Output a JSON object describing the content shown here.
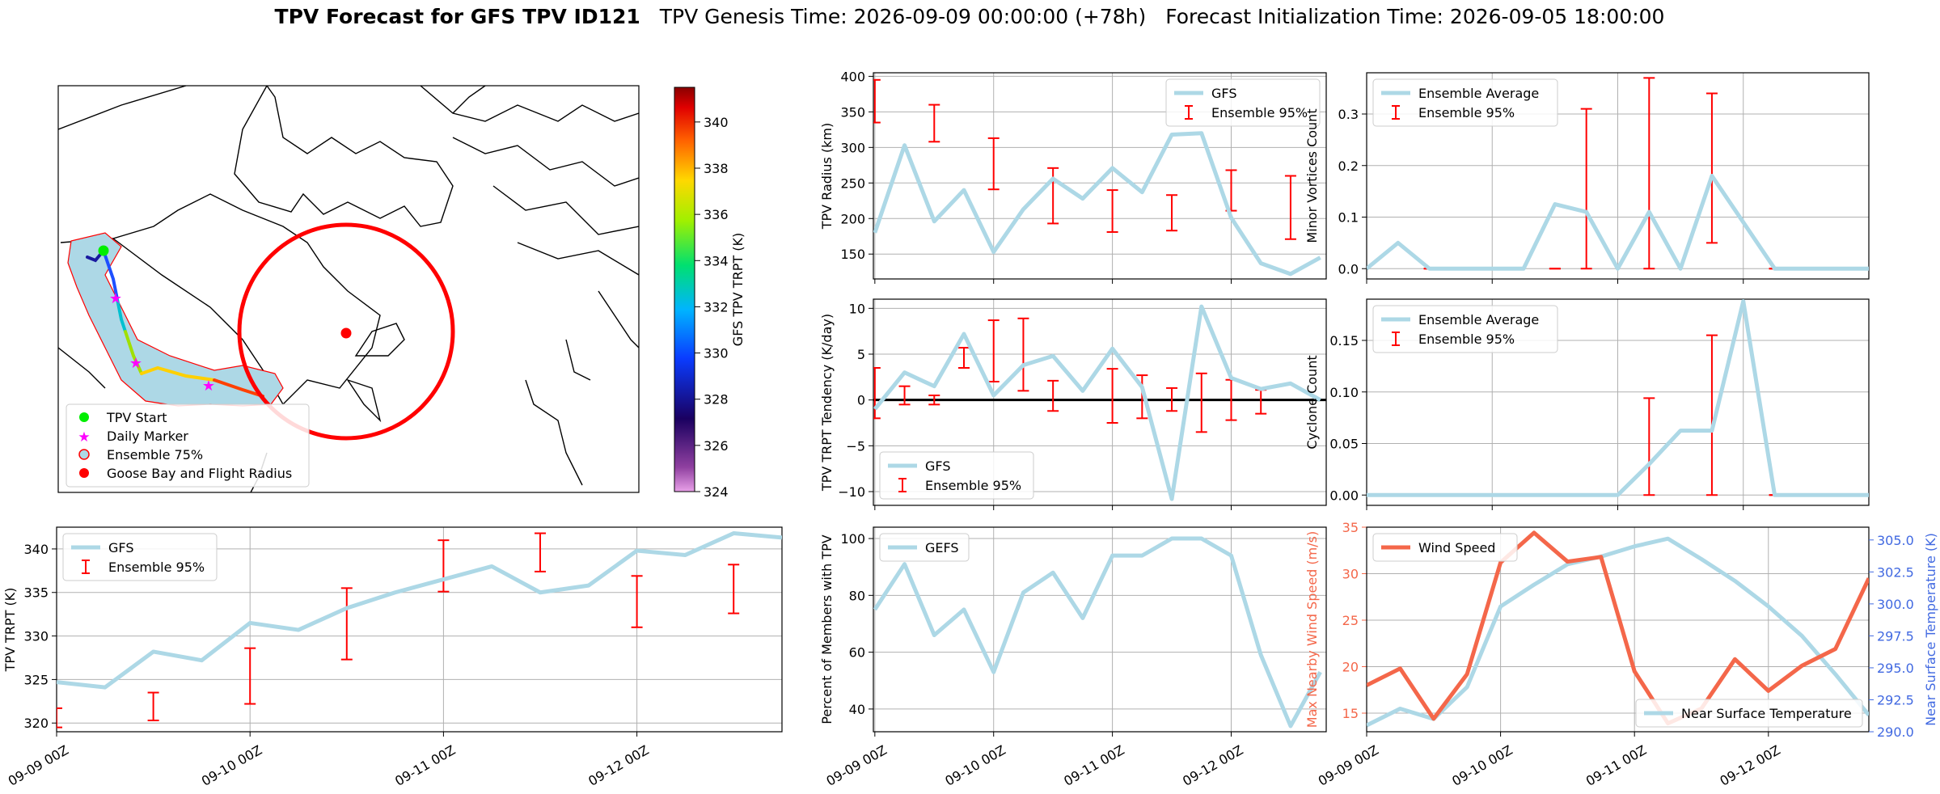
{
  "figure": {
    "title_bold": "TPV Forecast for GFS TPV ID121",
    "title_genesis": "TPV Genesis Time: 2026-09-09 00:00:00 (+78h)",
    "title_init": "Forecast Initialization Time: 2026-09-05 18:00:00"
  },
  "colors": {
    "gfs": "#add8e6",
    "ensemble": "#ff0000",
    "wind": "#f4674a",
    "temp_axis": "#4169e1"
  },
  "chart_data": [
    {
      "id": "map",
      "type": "scatter",
      "colorbar_label": "GFS TPV TRPT (K)",
      "colorbar_range": [
        324,
        341.5
      ],
      "colorbar_ticks": [
        "324",
        "326",
        "328",
        "330",
        "332",
        "334",
        "336",
        "338",
        "340"
      ],
      "legend": [
        "TPV Start",
        "Daily Marker",
        "Ensemble 75%",
        "Goose Bay and Flight Radius"
      ]
    },
    {
      "id": "radius",
      "type": "line",
      "ylabel": "TPV Radius (km)",
      "ylim": [
        115,
        405
      ],
      "yticks": [
        "150",
        "200",
        "250",
        "300",
        "350",
        "400"
      ],
      "legend": [
        "GFS",
        "Ensemble 95%"
      ],
      "legend_pos": "top-right",
      "series_values": [
        180,
        303,
        196,
        240,
        153,
        213,
        256,
        228,
        271,
        237,
        318,
        320,
        201,
        137,
        122,
        145
      ],
      "err": [
        [
          0,
          335,
          395
        ],
        [
          2,
          308,
          360
        ],
        [
          4,
          241,
          313
        ],
        [
          6,
          193,
          271
        ],
        [
          8,
          181,
          240
        ],
        [
          10,
          183,
          233
        ],
        [
          12,
          211,
          268
        ],
        [
          14,
          171,
          260
        ]
      ]
    },
    {
      "id": "ms",
      "type": "line",
      "ylabel": "Minor Vortices Count",
      "ylim": [
        -0.02,
        0.38
      ],
      "yticks": [
        "0.0",
        "0.1",
        "0.2",
        "0.3"
      ],
      "legend": [
        "Ensemble Average",
        "Ensemble 95%"
      ],
      "legend_pos": "top-left",
      "series_values": [
        0,
        0.05,
        0,
        0,
        0,
        0,
        0.125,
        0.11,
        0,
        0.11,
        0,
        0.18,
        0.09,
        0,
        0,
        0,
        0
      ],
      "err": [
        [
          2,
          0,
          0
        ],
        [
          6,
          0,
          0
        ],
        [
          7,
          0,
          0.31
        ],
        [
          9,
          0,
          0.37
        ],
        [
          11,
          0.05,
          0.34
        ],
        [
          13,
          0,
          0
        ],
        [
          15,
          0,
          0
        ]
      ]
    },
    {
      "id": "tend",
      "type": "line",
      "ylabel": "TPV TRPT Tendency (K/day)",
      "ylim": [
        -11.5,
        11
      ],
      "yticks": [
        "−10",
        "−5",
        "0",
        "5",
        "10"
      ],
      "legend": [
        "GFS",
        "Ensemble 95%"
      ],
      "legend_pos": "bottom-left",
      "series_values": [
        -1,
        3,
        1.5,
        7.2,
        0.5,
        3.8,
        4.8,
        1,
        5.6,
        1.4,
        -10.8,
        10.2,
        2.4,
        1.2,
        1.8,
        0
      ],
      "err": [
        [
          0,
          -2,
          3.5
        ],
        [
          1,
          -0.5,
          1.5
        ],
        [
          2,
          -0.5,
          0.5
        ],
        [
          3,
          3.5,
          5.7
        ],
        [
          4,
          2,
          8.7
        ],
        [
          5,
          1,
          8.9
        ],
        [
          6,
          -1.2,
          2.1
        ],
        [
          8,
          -2.5,
          3.4
        ],
        [
          9,
          -2,
          2.7
        ],
        [
          10,
          -1.2,
          1.3
        ],
        [
          11,
          -3.5,
          2.9
        ],
        [
          12,
          -2.2,
          2.2
        ],
        [
          13,
          -1.5,
          1.1
        ]
      ]
    },
    {
      "id": "cyc",
      "type": "line",
      "ylabel": "Cyclone Count",
      "ylim": [
        -0.01,
        0.19
      ],
      "yticks": [
        "0.00",
        "0.05",
        "0.10",
        "0.15"
      ],
      "legend": [
        "Ensemble Average",
        "Ensemble 95%"
      ],
      "legend_pos": "top-left",
      "series_values": [
        0,
        0,
        0,
        0,
        0,
        0,
        0,
        0,
        0,
        0.03,
        0.0625,
        0.0625,
        0.188,
        0,
        0,
        0,
        0
      ],
      "err": [
        [
          2,
          0,
          0
        ],
        [
          5,
          0,
          0
        ],
        [
          7,
          0,
          0
        ],
        [
          9,
          0,
          0.094
        ],
        [
          11,
          0,
          0.155
        ],
        [
          13,
          0,
          0
        ],
        [
          15,
          0,
          0
        ]
      ]
    },
    {
      "id": "trpt",
      "type": "line",
      "ylabel": "TPV TRPT (K)",
      "ylim": [
        319,
        342.5
      ],
      "yticks": [
        "320",
        "325",
        "330",
        "335",
        "340"
      ],
      "legend": [
        "GFS",
        "Ensemble 95%"
      ],
      "legend_pos": "top-left",
      "series_values": [
        324.7,
        324.1,
        328.2,
        327.2,
        331.5,
        330.7,
        333.2,
        335,
        336.5,
        338,
        335,
        335.8,
        339.8,
        339.3,
        341.8,
        341.3
      ],
      "err": [
        [
          0,
          319.5,
          321.7
        ],
        [
          2,
          320.3,
          323.5
        ],
        [
          4,
          322.2,
          328.6
        ],
        [
          6,
          327.3,
          335.5
        ],
        [
          8,
          335.1,
          341
        ],
        [
          10,
          337.4,
          341.8
        ],
        [
          12,
          331,
          336.9
        ],
        [
          14,
          332.6,
          338.2
        ]
      ]
    },
    {
      "id": "pct",
      "type": "line",
      "ylabel": "Percent of Members with TPV",
      "ylim": [
        32,
        104
      ],
      "yticks": [
        "40",
        "60",
        "80",
        "100"
      ],
      "legend": [
        "GEFS"
      ],
      "legend_pos": "top-left",
      "series_values": [
        75,
        91,
        66,
        75,
        53,
        81,
        88,
        72,
        94,
        94,
        100,
        100,
        94,
        59,
        34,
        53
      ]
    },
    {
      "id": "wind",
      "type": "line",
      "ylabel": "Max Nearby Wind Speed (m/s)",
      "ylabel2": "Near Surface Temperature (K)",
      "ylim": [
        13,
        35
      ],
      "ylim2": [
        290,
        306
      ],
      "yticks": [
        "15",
        "20",
        "25",
        "30",
        "35"
      ],
      "yticks2": [
        "290.0",
        "292.5",
        "295.0",
        "297.5",
        "300.0",
        "302.5",
        "305.0"
      ],
      "legend": [
        "Wind Speed"
      ],
      "legend2": [
        "Near Surface Temperature"
      ],
      "series_values": [
        18,
        19.8,
        14.4,
        19.2,
        31.2,
        34.4,
        31.3,
        31.8,
        19.5,
        13.9,
        15.5,
        20.8,
        17.4,
        20.1,
        21.9,
        29.5
      ],
      "series2_values": [
        290.5,
        291.8,
        291,
        293.5,
        299.8,
        301.5,
        303.1,
        303.7,
        304.5,
        305.1,
        303.5,
        301.8,
        299.8,
        297.5,
        294.5,
        291.3
      ]
    }
  ],
  "xticks": [
    "09-09 00Z",
    "09-10 00Z",
    "09-11 00Z",
    "09-12 00Z"
  ]
}
